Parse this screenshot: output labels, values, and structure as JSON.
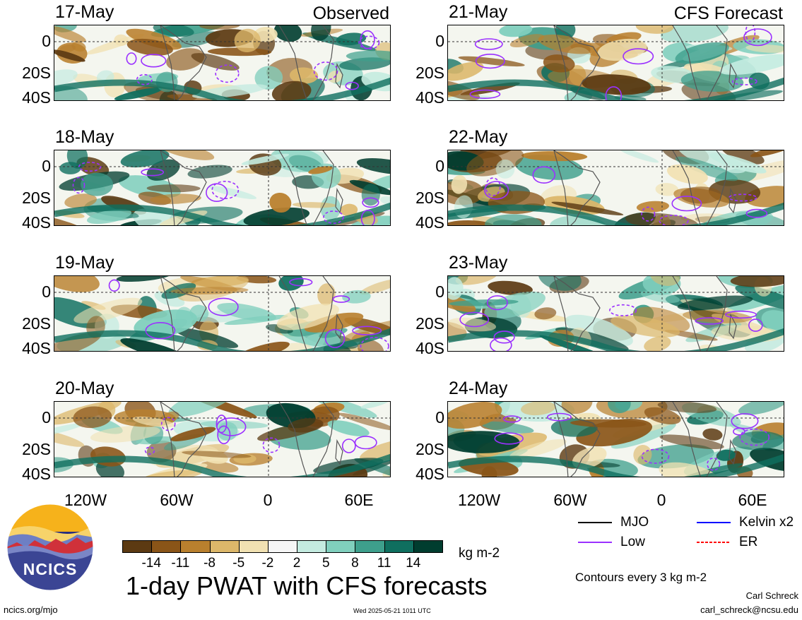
{
  "panels_left": {
    "tag": "Observed",
    "dates": [
      "17-May",
      "18-May",
      "19-May",
      "20-May"
    ]
  },
  "panels_right": {
    "tag": "CFS Forecast",
    "dates": [
      "21-May",
      "22-May",
      "23-May",
      "24-May"
    ]
  },
  "y_ticks": [
    "0",
    "20S",
    "40S"
  ],
  "x_ticks": [
    "120W",
    "60W",
    "0",
    "60E"
  ],
  "legend": {
    "items": [
      {
        "label": "MJO",
        "color": "#000000",
        "style": "solid"
      },
      {
        "label": "Kelvin x2",
        "color": "#0000ff",
        "style": "solid"
      },
      {
        "label": "Low",
        "color": "#9b30ff",
        "style": "solid"
      },
      {
        "label": "ER",
        "color": "#ff0000",
        "style": "dashed"
      }
    ],
    "contour_note": "Contours every 3 kg m-2"
  },
  "colorbar": {
    "colors": [
      "#5c3a12",
      "#8a5518",
      "#b9802e",
      "#dcb76a",
      "#f1e1b2",
      "#f6f6f6",
      "#c4ebe0",
      "#80cfbd",
      "#3e9f8c",
      "#0f6f5f",
      "#003d2f"
    ],
    "ticks": [
      "-14",
      "-11",
      "-8",
      "-5",
      "-2",
      "2",
      "5",
      "8",
      "11",
      "14"
    ],
    "units": "kg m-2"
  },
  "title": "1-day PWAT with CFS forecasts",
  "logo_text": "NCICS",
  "footer": {
    "left": "ncics.org/mjo",
    "center": "Wed 2025-05-21 1011 UTC",
    "author": "Carl Schreck",
    "email": "carl_schreck@ncsu.edu"
  }
}
